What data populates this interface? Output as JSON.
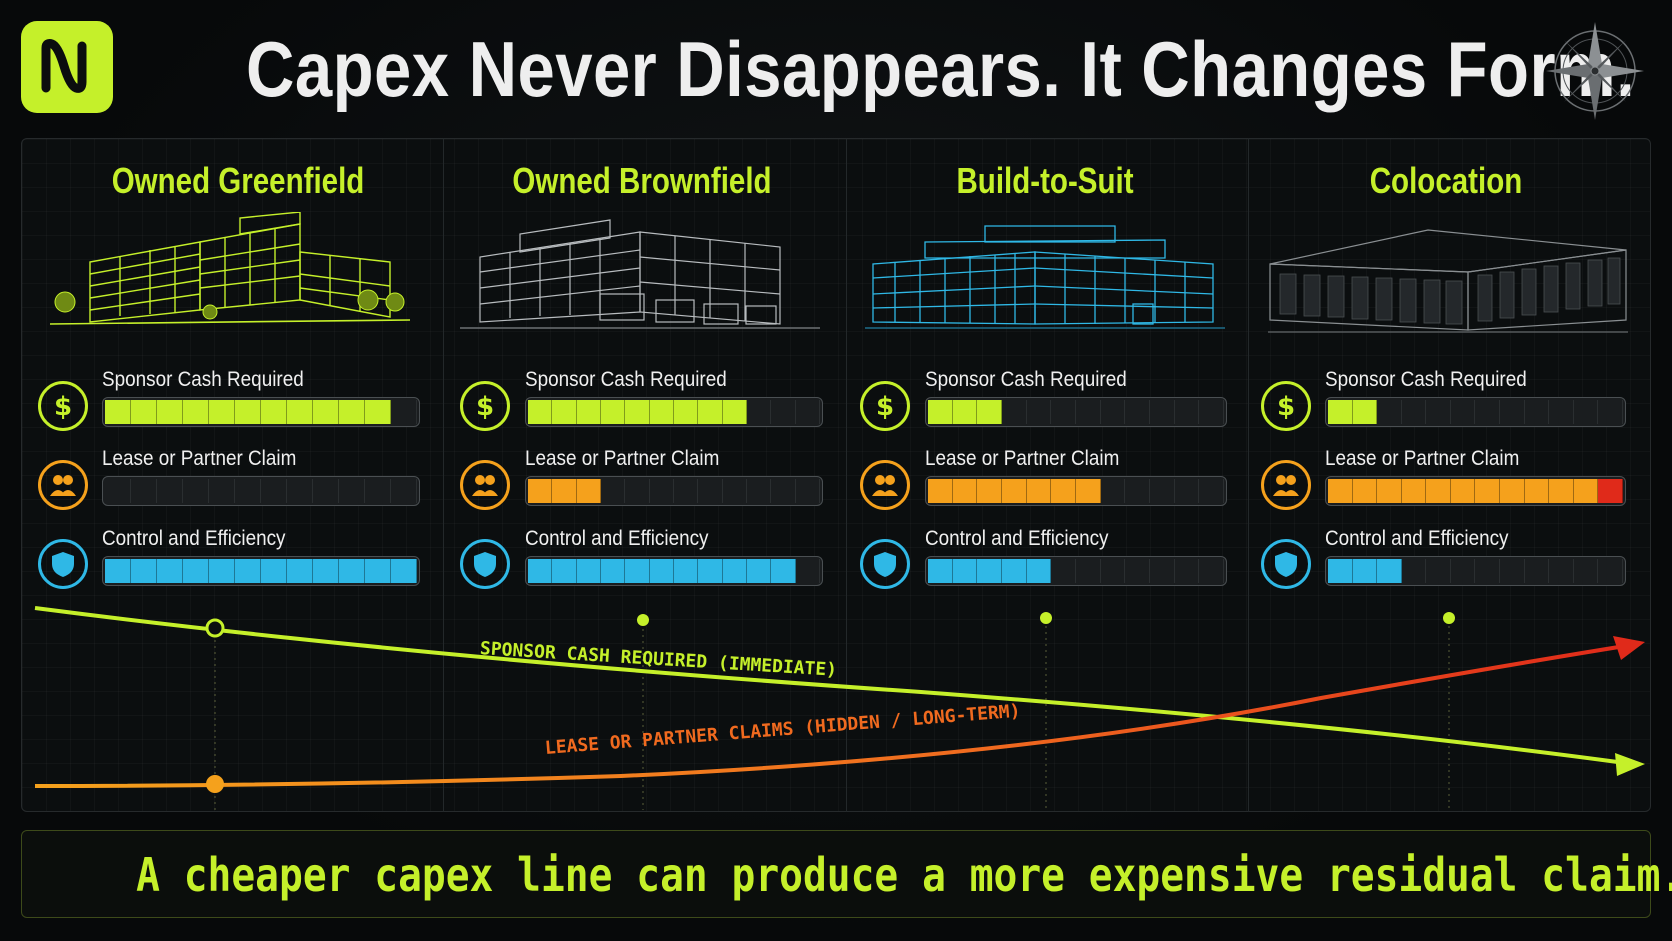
{
  "header": {
    "title": "Capex Never Disappears. It Changes Form.",
    "logo_letter": "N",
    "logo_icon": "brand-n-logo",
    "compass_icon": "compass-rose-icon"
  },
  "metric_labels": {
    "sponsor_cash": "Sponsor Cash Required",
    "lease_claim": "Lease or Partner Claim",
    "control": "Control and Efficiency"
  },
  "metric_icons": {
    "sponsor_cash": "dollar-icon",
    "lease_claim": "people-icon",
    "control": "shield-icon"
  },
  "colors": {
    "accent_green": "#c5f02a",
    "orange": "#f5a11c",
    "red": "#e02a1a",
    "blue": "#2fb8e6",
    "track": "#1a1d1f"
  },
  "segments_per_bar": 12,
  "columns": [
    {
      "title": "Owned Greenfield",
      "building_style": "green",
      "metrics": {
        "sponsor_cash": 0.88,
        "lease_claim": 0.0,
        "control": 1.0
      },
      "lease_red_tip": false
    },
    {
      "title": "Owned Brownfield",
      "building_style": "gray",
      "metrics": {
        "sponsor_cash": 0.75,
        "lease_claim": 0.25,
        "control": 0.88
      },
      "lease_red_tip": false
    },
    {
      "title": "Build-to-Suit",
      "building_style": "blue",
      "metrics": {
        "sponsor_cash": 0.25,
        "lease_claim": 0.55,
        "control": 0.42
      },
      "lease_red_tip": false
    },
    {
      "title": "Colocation",
      "building_style": "dark",
      "metrics": {
        "sponsor_cash": 0.17,
        "lease_claim": 1.0,
        "control": 0.25
      },
      "lease_red_tip": true
    }
  ],
  "trend": {
    "sponsor_line_label": "SPONSOR CASH REQUIRED (IMMEDIATE)",
    "lease_line_label": "LEASE OR PARTNER CLAIMS (HIDDEN / LONG-TERM)"
  },
  "footer": {
    "text": "A cheaper capex line can produce a more expensive residual claim."
  }
}
